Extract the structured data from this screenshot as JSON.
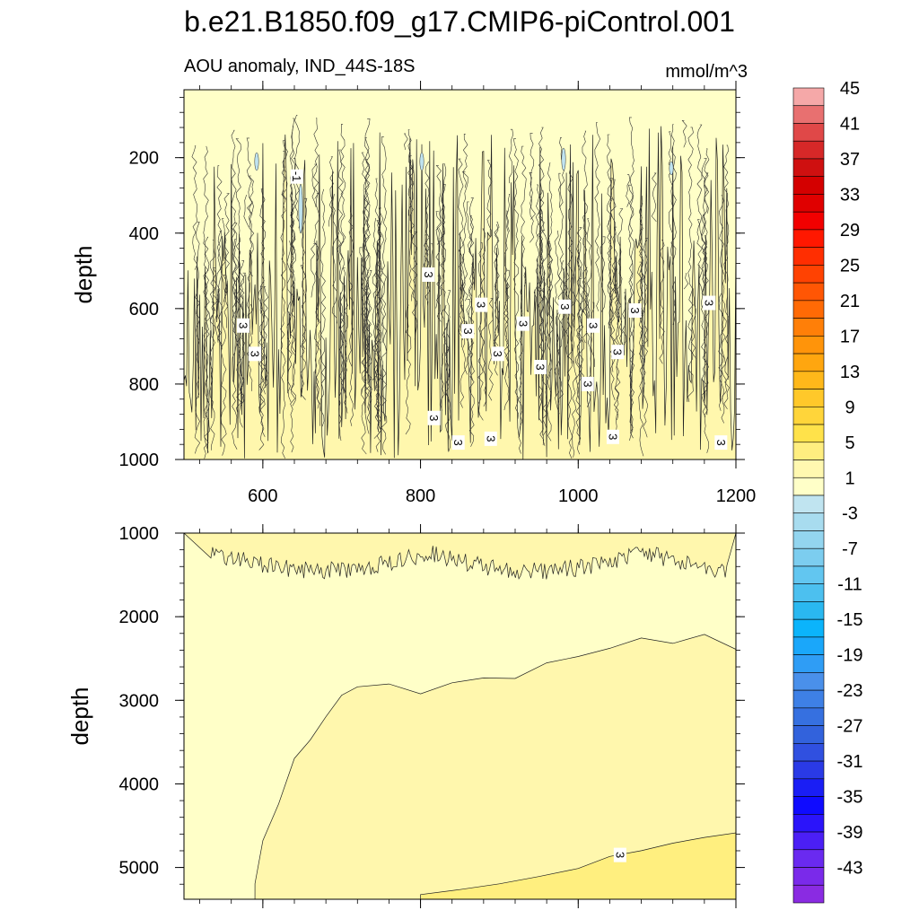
{
  "chart_data": {
    "type": "heatmap",
    "title": "b.e21.B1850.f09_g17.CMIP6-piControl.001",
    "subtitle_left": "AOU anomaly, IND_44S-18S",
    "units": "mmol/m^3",
    "ylabel": "depth",
    "xlim": [
      500,
      1200
    ],
    "x_ticks": [
      600,
      800,
      1000,
      1200
    ],
    "x_tick_labels": [
      "600",
      "800",
      "1000",
      "1200"
    ],
    "panels": [
      {
        "name": "upper",
        "ylim": [
          1000,
          20
        ],
        "y_ticks": [
          200,
          400,
          600,
          800,
          1000
        ],
        "y_tick_labels": [
          "200",
          "400",
          "600",
          "800",
          "1000"
        ],
        "contour_labels": [
          {
            "text": "-1",
            "x": 643,
            "y": 250
          },
          {
            "text": "3",
            "x": 810,
            "y": 510
          },
          {
            "text": "3",
            "x": 575,
            "y": 645
          },
          {
            "text": "3",
            "x": 590,
            "y": 720
          },
          {
            "text": "3",
            "x": 877,
            "y": 590
          },
          {
            "text": "3",
            "x": 860,
            "y": 660
          },
          {
            "text": "3",
            "x": 983,
            "y": 595
          },
          {
            "text": "3",
            "x": 1072,
            "y": 605
          },
          {
            "text": "3",
            "x": 1166,
            "y": 585
          },
          {
            "text": "3",
            "x": 930,
            "y": 640
          },
          {
            "text": "3",
            "x": 1019,
            "y": 645
          },
          {
            "text": "3",
            "x": 898,
            "y": 720
          },
          {
            "text": "3",
            "x": 1050,
            "y": 715
          },
          {
            "text": "3",
            "x": 952,
            "y": 755
          },
          {
            "text": "3",
            "x": 1012,
            "y": 800
          },
          {
            "text": "3",
            "x": 817,
            "y": 890
          },
          {
            "text": "3",
            "x": 848,
            "y": 955
          },
          {
            "text": "3",
            "x": 889,
            "y": 945
          },
          {
            "text": "3",
            "x": 1044,
            "y": 940
          },
          {
            "text": "3",
            "x": 1181,
            "y": 955
          }
        ]
      },
      {
        "name": "lower",
        "ylim": [
          5380,
          1000
        ],
        "y_ticks": [
          1000,
          2000,
          3000,
          4000,
          5000
        ],
        "y_tick_labels": [
          "1000",
          "2000",
          "3000",
          "4000",
          "5000"
        ],
        "contour_labels": [
          {
            "text": "3",
            "x": 1053,
            "y": 4850
          }
        ]
      }
    ],
    "colorbar": {
      "levels": [
        -47,
        -45,
        -43,
        -41,
        -39,
        -37,
        -35,
        -33,
        -31,
        -29,
        -27,
        -25,
        -23,
        -21,
        -19,
        -17,
        -15,
        -13,
        -11,
        -9,
        -7,
        -5,
        -3,
        -1,
        1,
        3,
        5,
        7,
        9,
        11,
        13,
        15,
        17,
        19,
        21,
        23,
        25,
        27,
        29,
        31,
        33,
        35,
        37,
        39,
        41,
        43,
        45
      ],
      "tick_labels": [
        "-43",
        "-39",
        "-35",
        "-31",
        "-27",
        "-23",
        "-19",
        "-15",
        "-11",
        "-7",
        "-3",
        "1",
        "5",
        "9",
        "13",
        "17",
        "21",
        "25",
        "29",
        "33",
        "37",
        "41",
        "45"
      ],
      "colors": [
        "#8a2be2",
        "#7a2aea",
        "#6a2af0",
        "#4b1ff5",
        "#2b14fa",
        "#0f0bff",
        "#1a1ef5",
        "#2a3ae6",
        "#3050e0",
        "#3262dc",
        "#3670e0",
        "#3e80e6",
        "#4a90ea",
        "#2f9df5",
        "#1aa7fa",
        "#0bb4fb",
        "#2ab8f0",
        "#4cc0ef",
        "#62c6f0",
        "#7ccdef",
        "#93d5ef",
        "#a8dcef",
        "#c0e4f0",
        "#ffffc8",
        "#fff8b0",
        "#ffee80",
        "#ffe24a",
        "#ffd53a",
        "#ffc82a",
        "#ffb81a",
        "#ffa60f",
        "#ff940a",
        "#ff7f08",
        "#ff6a05",
        "#ff5604",
        "#ff4202",
        "#ff2e01",
        "#ff1800",
        "#f20000",
        "#e00000",
        "#d40000",
        "#cf1010",
        "#d62828",
        "#e04848",
        "#e87070",
        "#f5a8a8"
      ]
    }
  }
}
